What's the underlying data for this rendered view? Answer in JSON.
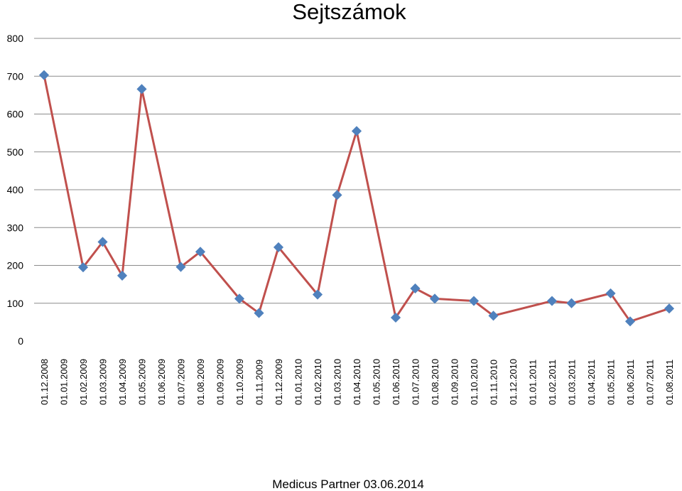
{
  "chart_data": {
    "type": "line",
    "title": "Sejtszámok",
    "ylim": [
      0,
      800
    ],
    "yticks": [
      0,
      100,
      200,
      300,
      400,
      500,
      600,
      700,
      800
    ],
    "grid": "horizontal",
    "categories": [
      "01.12.2008",
      "01.01.2009",
      "01.02.2009",
      "01.03.2009",
      "01.04.2009",
      "01.05.2009",
      "01.06.2009",
      "01.07.2009",
      "01.08.2009",
      "01.09.2009",
      "01.10.2009",
      "01.11.2009",
      "01.12.2009",
      "01.01.2010",
      "01.02.2010",
      "01.03.2010",
      "01.04.2010",
      "01.05.2010",
      "01.06.2010",
      "01.07.2010",
      "01.08.2010",
      "01.09.2010",
      "01.10.2010",
      "01.11.2010",
      "01.12.2010",
      "01.01.2011",
      "01.02.2011",
      "01.03.2011",
      "01.04.2011",
      "01.05.2011",
      "01.06.2011",
      "01.07.2011",
      "01.08.2011"
    ],
    "points": [
      {
        "x": 0,
        "y": 703
      },
      {
        "x": 2,
        "y": 195
      },
      {
        "x": 3,
        "y": 262
      },
      {
        "x": 4,
        "y": 173
      },
      {
        "x": 5,
        "y": 666
      },
      {
        "x": 7,
        "y": 196
      },
      {
        "x": 8,
        "y": 236
      },
      {
        "x": 10,
        "y": 112
      },
      {
        "x": 11,
        "y": 74
      },
      {
        "x": 12,
        "y": 248
      },
      {
        "x": 14,
        "y": 123
      },
      {
        "x": 15,
        "y": 386
      },
      {
        "x": 16,
        "y": 555
      },
      {
        "x": 18,
        "y": 62
      },
      {
        "x": 19,
        "y": 139
      },
      {
        "x": 20,
        "y": 112
      },
      {
        "x": 22,
        "y": 106
      },
      {
        "x": 23,
        "y": 67
      },
      {
        "x": 26,
        "y": 106
      },
      {
        "x": 27,
        "y": 100
      },
      {
        "x": 29,
        "y": 126
      },
      {
        "x": 30,
        "y": 52
      },
      {
        "x": 32,
        "y": 86
      }
    ],
    "colors": {
      "line": "#c0504d",
      "marker": "#4f81bd",
      "grid": "#8c8c8c"
    }
  },
  "footer": "Medicus Partner 03.06.2014"
}
